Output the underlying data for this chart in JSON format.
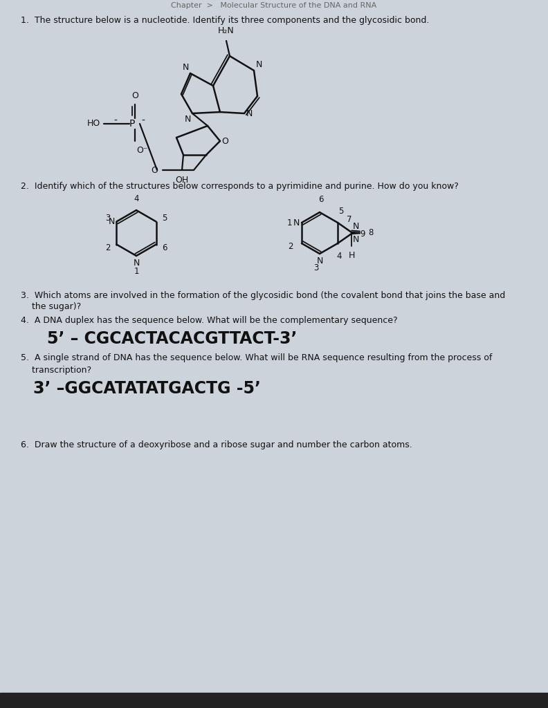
{
  "bg_color": "#cdd3db",
  "q1_text": "1.  The structure below is a nucleotide. Identify its three components and the glycosidic bond.",
  "q2_text": "2.  Identify which of the structures below corresponds to a pyrimidine and purine. How do you know?",
  "q3_text": "3.  Which atoms are involved in the formation of the glycosidic bond (the covalent bond that joins the base and",
  "q3_text2": "    the sugar)?",
  "q4_text": "4.  A DNA duplex has the sequence below. What will be the complementary sequence?",
  "q4_seq": "5’ – CGCACTACACGTTACT-3’",
  "q5_text": "5.  A single strand of DNA has the sequence below. What will be RNA sequence resulting from the process of",
  "q5_text2": "    transcription?",
  "q5_seq": "3’ –GGCATATATGACTG -5’",
  "q6_text": "6.  Draw the structure of a deoxyribose and a ribose sugar and number the carbon atoms.",
  "text_color": "#111111",
  "line_color": "#111111",
  "header_text": "Chapter  >   Molecular Structure of the DNA and RNA"
}
